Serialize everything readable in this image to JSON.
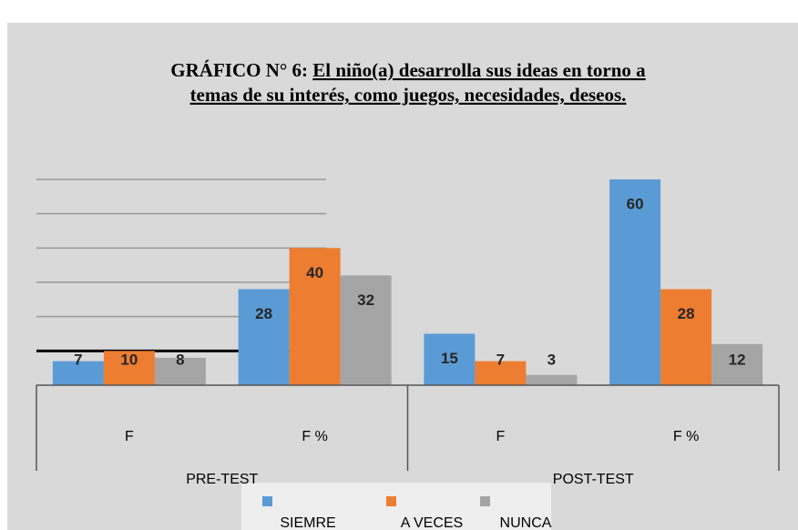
{
  "chart_data": {
    "type": "bar",
    "title_label": "GRÁFICO N° 6:",
    "title_lines": [
      "El niño(a) desarrolla sus ideas en torno a",
      "temas de su interés, como juegos, necesidades, deseos."
    ],
    "groups": [
      "PRE-TEST",
      "POST-TEST"
    ],
    "categories": [
      "F",
      "F %",
      "F",
      "F %"
    ],
    "series": [
      {
        "name": "SIEMRE",
        "color": "#5b9bd5",
        "values": [
          7,
          28,
          15,
          60
        ]
      },
      {
        "name": "A VECES",
        "color": "#ed7d31",
        "values": [
          10,
          40,
          7,
          28
        ]
      },
      {
        "name": "NUNCA",
        "color": "#a5a5a5",
        "values": [
          8,
          32,
          3,
          12
        ]
      }
    ],
    "ylim": [
      0,
      60
    ],
    "yticks": [
      10,
      20,
      30,
      40,
      50,
      60
    ],
    "grid": true
  }
}
